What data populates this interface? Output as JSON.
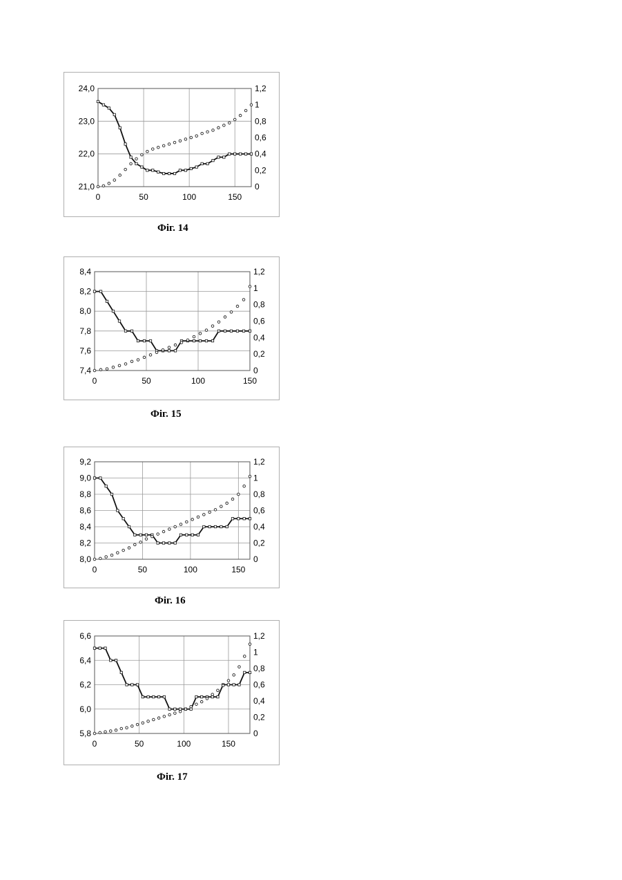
{
  "figures": [
    {
      "caption": "Фіг. 14"
    },
    {
      "caption": "Фіг. 15"
    },
    {
      "caption": "Фіг. 16"
    },
    {
      "caption": "Фіг. 17"
    }
  ],
  "chart_data": [
    {
      "type": "line",
      "title": "",
      "xlim": [
        0,
        168
      ],
      "ylim": [
        21.0,
        24.0
      ],
      "y2lim": [
        0,
        1.2
      ],
      "x_ticks": [
        0,
        50,
        100,
        150
      ],
      "y_ticks": [
        "21,0",
        "22,0",
        "23,0",
        "24,0"
      ],
      "y2_ticks": [
        "0",
        "0,2",
        "0,4",
        "0,6",
        "0,8",
        "1",
        "1,2"
      ],
      "grid": true,
      "series": [
        {
          "axis": "left",
          "style": "solid-squares",
          "x": [
            0,
            6,
            12,
            18,
            24,
            30,
            36,
            42,
            48,
            54,
            60,
            66,
            72,
            78,
            84,
            90,
            96,
            102,
            108,
            114,
            120,
            126,
            132,
            138,
            144,
            150,
            156,
            162,
            168
          ],
          "y": [
            23.6,
            23.5,
            23.4,
            23.2,
            22.8,
            22.3,
            21.9,
            21.7,
            21.6,
            21.5,
            21.5,
            21.45,
            21.4,
            21.4,
            21.4,
            21.5,
            21.5,
            21.55,
            21.6,
            21.7,
            21.7,
            21.8,
            21.9,
            21.9,
            22.0,
            22.0,
            22.0,
            22.0,
            22.0
          ]
        },
        {
          "axis": "right",
          "style": "dotted-circles",
          "x": [
            0,
            6,
            12,
            18,
            24,
            30,
            36,
            42,
            48,
            54,
            60,
            66,
            72,
            78,
            84,
            90,
            96,
            102,
            108,
            114,
            120,
            126,
            132,
            138,
            144,
            150,
            156,
            162,
            168
          ],
          "y": [
            0,
            0.01,
            0.04,
            0.08,
            0.14,
            0.21,
            0.28,
            0.34,
            0.39,
            0.43,
            0.46,
            0.48,
            0.5,
            0.52,
            0.54,
            0.56,
            0.58,
            0.6,
            0.62,
            0.65,
            0.67,
            0.69,
            0.72,
            0.75,
            0.78,
            0.82,
            0.87,
            0.93,
            1.0
          ]
        }
      ]
    },
    {
      "type": "line",
      "title": "",
      "xlim": [
        0,
        150
      ],
      "ylim": [
        7.4,
        8.4
      ],
      "y2lim": [
        0,
        1.2
      ],
      "x_ticks": [
        0,
        50,
        100,
        150
      ],
      "y_ticks": [
        "7,4",
        "7,6",
        "7,8",
        "8,0",
        "8,2",
        "8,4"
      ],
      "y2_ticks": [
        "0",
        "0,2",
        "0,4",
        "0,6",
        "0,8",
        "1",
        "1,2"
      ],
      "grid": true,
      "series": [
        {
          "axis": "left",
          "style": "solid-squares",
          "x": [
            0,
            6,
            12,
            18,
            24,
            30,
            36,
            42,
            48,
            54,
            60,
            66,
            72,
            78,
            84,
            90,
            96,
            102,
            108,
            114,
            120,
            126,
            132,
            138,
            144,
            150
          ],
          "y": [
            8.2,
            8.2,
            8.1,
            8.0,
            7.9,
            7.8,
            7.8,
            7.7,
            7.7,
            7.7,
            7.6,
            7.6,
            7.6,
            7.6,
            7.7,
            7.7,
            7.7,
            7.7,
            7.7,
            7.7,
            7.8,
            7.8,
            7.8,
            7.8,
            7.8,
            7.8
          ]
        },
        {
          "axis": "right",
          "style": "dotted-circles",
          "x": [
            0,
            6,
            12,
            18,
            24,
            30,
            36,
            42,
            48,
            54,
            60,
            66,
            72,
            78,
            84,
            90,
            96,
            102,
            108,
            114,
            120,
            126,
            132,
            138,
            144,
            150
          ],
          "y": [
            0,
            0.01,
            0.02,
            0.04,
            0.06,
            0.08,
            0.11,
            0.13,
            0.16,
            0.19,
            0.22,
            0.25,
            0.28,
            0.31,
            0.34,
            0.37,
            0.41,
            0.45,
            0.49,
            0.54,
            0.59,
            0.65,
            0.71,
            0.78,
            0.86,
            1.02
          ]
        }
      ]
    },
    {
      "type": "line",
      "title": "",
      "xlim": [
        0,
        162
      ],
      "ylim": [
        8.0,
        9.2
      ],
      "y2lim": [
        0,
        1.2
      ],
      "x_ticks": [
        0,
        50,
        100,
        150
      ],
      "y_ticks": [
        "8,0",
        "8,2",
        "8,4",
        "8,6",
        "8,8",
        "9,0",
        "9,2"
      ],
      "y2_ticks": [
        "0",
        "0,2",
        "0,4",
        "0,6",
        "0,8",
        "1",
        "1,2"
      ],
      "grid": true,
      "series": [
        {
          "axis": "left",
          "style": "solid-squares",
          "x": [
            0,
            6,
            12,
            18,
            24,
            30,
            36,
            42,
            48,
            54,
            60,
            66,
            72,
            78,
            84,
            90,
            96,
            102,
            108,
            114,
            120,
            126,
            132,
            138,
            144,
            150,
            156,
            162
          ],
          "y": [
            9.0,
            9.0,
            8.9,
            8.8,
            8.6,
            8.5,
            8.4,
            8.3,
            8.3,
            8.3,
            8.3,
            8.2,
            8.2,
            8.2,
            8.2,
            8.3,
            8.3,
            8.3,
            8.3,
            8.4,
            8.4,
            8.4,
            8.4,
            8.4,
            8.5,
            8.5,
            8.5,
            8.5
          ]
        },
        {
          "axis": "right",
          "style": "dotted-circles",
          "x": [
            0,
            6,
            12,
            18,
            24,
            30,
            36,
            42,
            48,
            54,
            60,
            66,
            72,
            78,
            84,
            90,
            96,
            102,
            108,
            114,
            120,
            126,
            132,
            138,
            144,
            150,
            156,
            162
          ],
          "y": [
            0,
            0.01,
            0.03,
            0.05,
            0.08,
            0.11,
            0.14,
            0.18,
            0.21,
            0.25,
            0.28,
            0.31,
            0.34,
            0.37,
            0.4,
            0.43,
            0.46,
            0.49,
            0.52,
            0.55,
            0.58,
            0.61,
            0.65,
            0.69,
            0.74,
            0.8,
            0.9,
            1.02
          ]
        }
      ]
    },
    {
      "type": "line",
      "title": "",
      "xlim": [
        0,
        174
      ],
      "ylim": [
        5.8,
        6.6
      ],
      "y2lim": [
        0,
        1.2
      ],
      "x_ticks": [
        0,
        50,
        100,
        150
      ],
      "y_ticks": [
        "5,8",
        "6,0",
        "6,2",
        "6,4",
        "6,6"
      ],
      "y2_ticks": [
        "0",
        "0,2",
        "0,4",
        "0,6",
        "0,8",
        "1",
        "1,2"
      ],
      "grid": true,
      "series": [
        {
          "axis": "left",
          "style": "solid-squares",
          "x": [
            0,
            6,
            12,
            18,
            24,
            30,
            36,
            42,
            48,
            54,
            60,
            66,
            72,
            78,
            84,
            90,
            96,
            102,
            108,
            114,
            120,
            126,
            132,
            138,
            144,
            150,
            156,
            162,
            168,
            174
          ],
          "y": [
            6.5,
            6.5,
            6.5,
            6.4,
            6.4,
            6.3,
            6.2,
            6.2,
            6.2,
            6.1,
            6.1,
            6.1,
            6.1,
            6.1,
            6.0,
            6.0,
            6.0,
            6.0,
            6.0,
            6.1,
            6.1,
            6.1,
            6.1,
            6.1,
            6.2,
            6.2,
            6.2,
            6.2,
            6.3,
            6.3
          ]
        },
        {
          "axis": "right",
          "style": "dotted-circles",
          "x": [
            0,
            6,
            12,
            18,
            24,
            30,
            36,
            42,
            48,
            54,
            60,
            66,
            72,
            78,
            84,
            90,
            96,
            102,
            108,
            114,
            120,
            126,
            132,
            138,
            144,
            150,
            156,
            162,
            168,
            174
          ],
          "y": [
            0,
            0.01,
            0.02,
            0.03,
            0.04,
            0.06,
            0.07,
            0.09,
            0.11,
            0.13,
            0.15,
            0.17,
            0.19,
            0.21,
            0.23,
            0.25,
            0.27,
            0.3,
            0.33,
            0.36,
            0.39,
            0.43,
            0.48,
            0.53,
            0.59,
            0.65,
            0.72,
            0.82,
            0.95,
            1.1
          ]
        }
      ]
    }
  ]
}
